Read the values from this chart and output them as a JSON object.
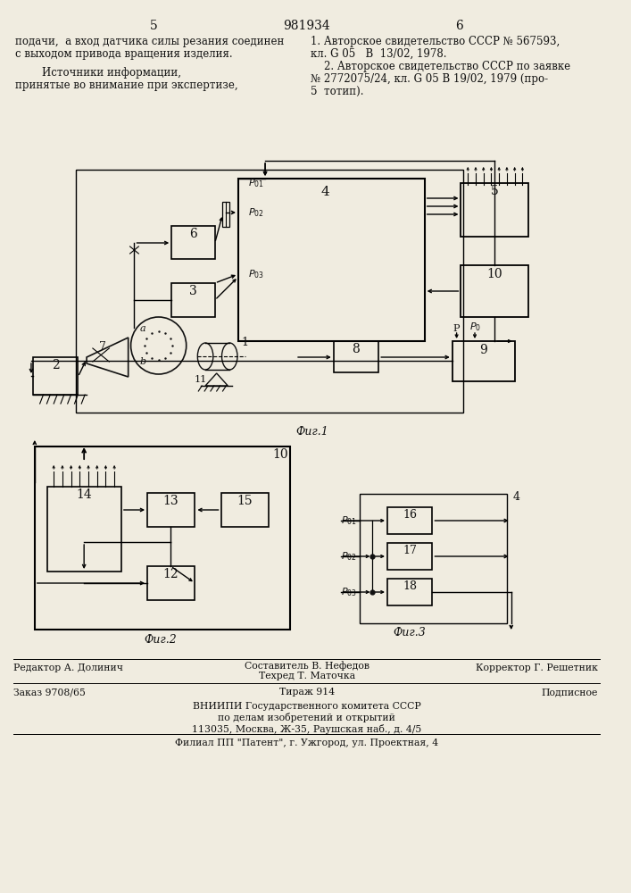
{
  "bg_color": "#f0ece0",
  "text_color": "#111111",
  "page_number_left": "5",
  "page_number_center": "981934",
  "page_number_right": "6",
  "left_text_line1": "подачи,  а вход датчика силы резания соединен",
  "left_text_line2": "с выходом привода вращения изделия.",
  "left_text_line3": "        Источники информации,",
  "left_text_line4": "принятые во внимание при экспертизе,",
  "right_text_line1": "1. Авторское свидетельство СССР № 567593,",
  "right_text_line2": "кл. G 05   B  13/02, 1978.",
  "right_text_line3": "    2. Авторское свидетельство СССР по заявке",
  "right_text_line4": "№ 2772075/24, кл. G 05 B 19/02, 1979 (про-",
  "right_text_line5": "5  тотип).",
  "fig1_caption": "Фиг.1",
  "fig2_caption": "Фиг.2",
  "fig3_caption": "Фиг.3",
  "footer_line1_left": "Редактор А. Долинич",
  "footer_line1_center": "Составитель В. Нефедов\nТехред Т. Маточка",
  "footer_line1_right": "Корректор Г. Решетник",
  "footer_line2_left": "Заказ 9708/65",
  "footer_line2_center": "Тираж 914",
  "footer_line2_right": "Подписное",
  "footer_org": "ВНИИПИ Государственного комитета СССР\nпо делам изобретений и открытий\n113035, Москва, Ж-35, Раушская наб., д. 4/5",
  "footer_branch": "Филиал ПП \"Патент\", г. Ужгород, ул. Проектная, 4"
}
